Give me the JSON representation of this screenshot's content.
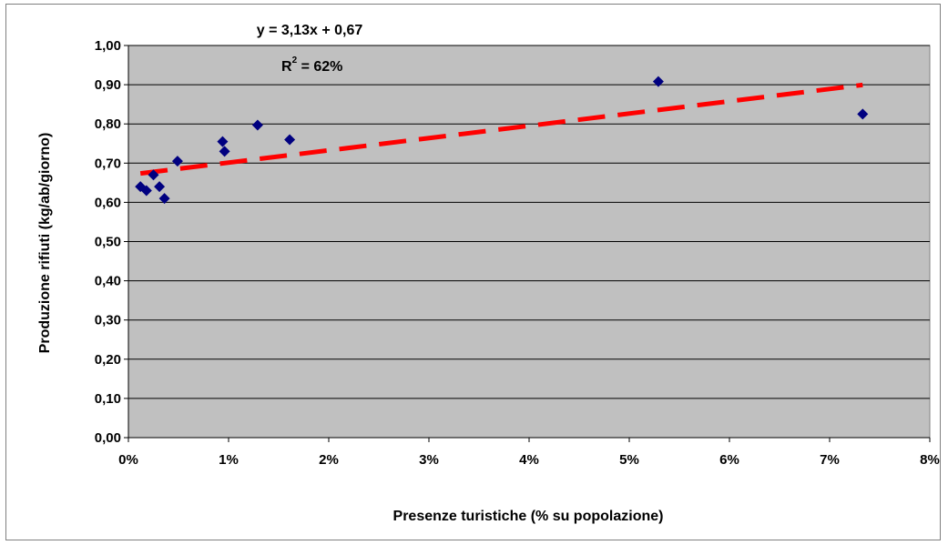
{
  "chart_data": {
    "type": "scatter",
    "xlabel": "Presenze turistiche (% su popolazione)",
    "ylabel": "Produzione rifiuti (kg/ab/giorno)",
    "xlim": [
      0,
      0.08
    ],
    "ylim": [
      0,
      1.0
    ],
    "x_ticks": [
      "0%",
      "1%",
      "2%",
      "3%",
      "4%",
      "5%",
      "6%",
      "7%",
      "8%"
    ],
    "y_ticks": [
      "0,00",
      "0,10",
      "0,20",
      "0,30",
      "0,40",
      "0,50",
      "0,60",
      "0,70",
      "0,80",
      "0,90",
      "1,00"
    ],
    "grid": "horizontal",
    "plot_background": "#c0c0c0",
    "series": [
      {
        "color": "#000080",
        "marker": "diamond",
        "points": [
          {
            "x": 0.0012,
            "y": 0.64
          },
          {
            "x": 0.0018,
            "y": 0.63
          },
          {
            "x": 0.0025,
            "y": 0.67
          },
          {
            "x": 0.0031,
            "y": 0.64
          },
          {
            "x": 0.0036,
            "y": 0.61
          },
          {
            "x": 0.0049,
            "y": 0.705
          },
          {
            "x": 0.0094,
            "y": 0.755
          },
          {
            "x": 0.0096,
            "y": 0.73
          },
          {
            "x": 0.0129,
            "y": 0.797
          },
          {
            "x": 0.0161,
            "y": 0.76
          },
          {
            "x": 0.0529,
            "y": 0.908
          },
          {
            "x": 0.0733,
            "y": 0.825
          }
        ]
      }
    ],
    "trendline": {
      "type": "linear",
      "slope": 3.13,
      "intercept": 0.67,
      "x_range": [
        0.0012,
        0.0733
      ],
      "color": "#ff0000",
      "style": "dashed"
    },
    "annotations": {
      "equation": "y = 3,13x + 0,67",
      "r2_prefix": "R",
      "r2_exponent": "2",
      "r2_value": " = 62%"
    }
  }
}
